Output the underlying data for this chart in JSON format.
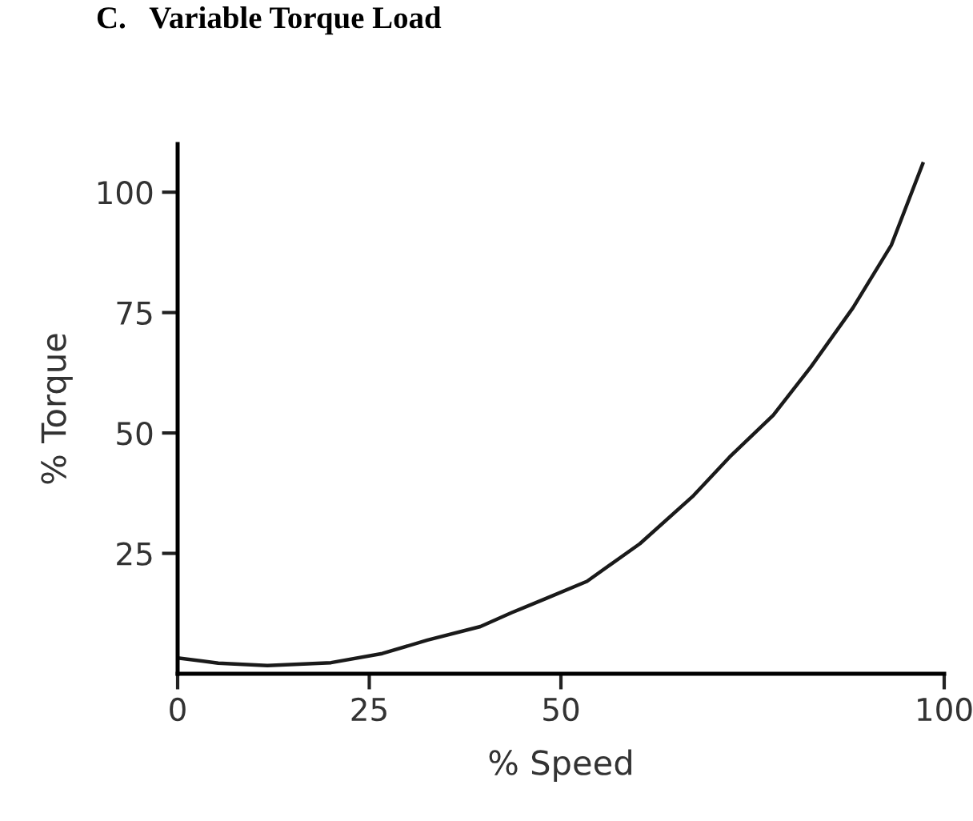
{
  "chart_data": {
    "type": "line",
    "title": "C.   Variable Torque Load",
    "xlabel": "% Speed",
    "ylabel": "% Torque",
    "x": [
      0,
      5.3,
      11.7,
      20,
      26.7,
      32.6,
      39.5,
      43.6,
      48,
      53.4,
      60.3,
      67.3,
      72,
      77.7,
      82.6,
      88.1,
      93.1,
      97.2
    ],
    "series": [
      {
        "color": "#1a1a1a",
        "values": [
          3.3,
          2.2,
          1.7,
          2.3,
          4.2,
          7,
          9.8,
          12.7,
          15.6,
          19.2,
          27,
          37,
          45,
          53.7,
          63.7,
          76,
          89,
          105.9
        ]
      }
    ],
    "xlim": [
      0,
      100
    ],
    "ylim": [
      0,
      110
    ],
    "xticks": [
      0,
      25,
      50,
      100
    ],
    "yticks": [
      25,
      50,
      75,
      100
    ],
    "grid": false,
    "legend": false,
    "marker": "none",
    "line_style": "solid"
  }
}
